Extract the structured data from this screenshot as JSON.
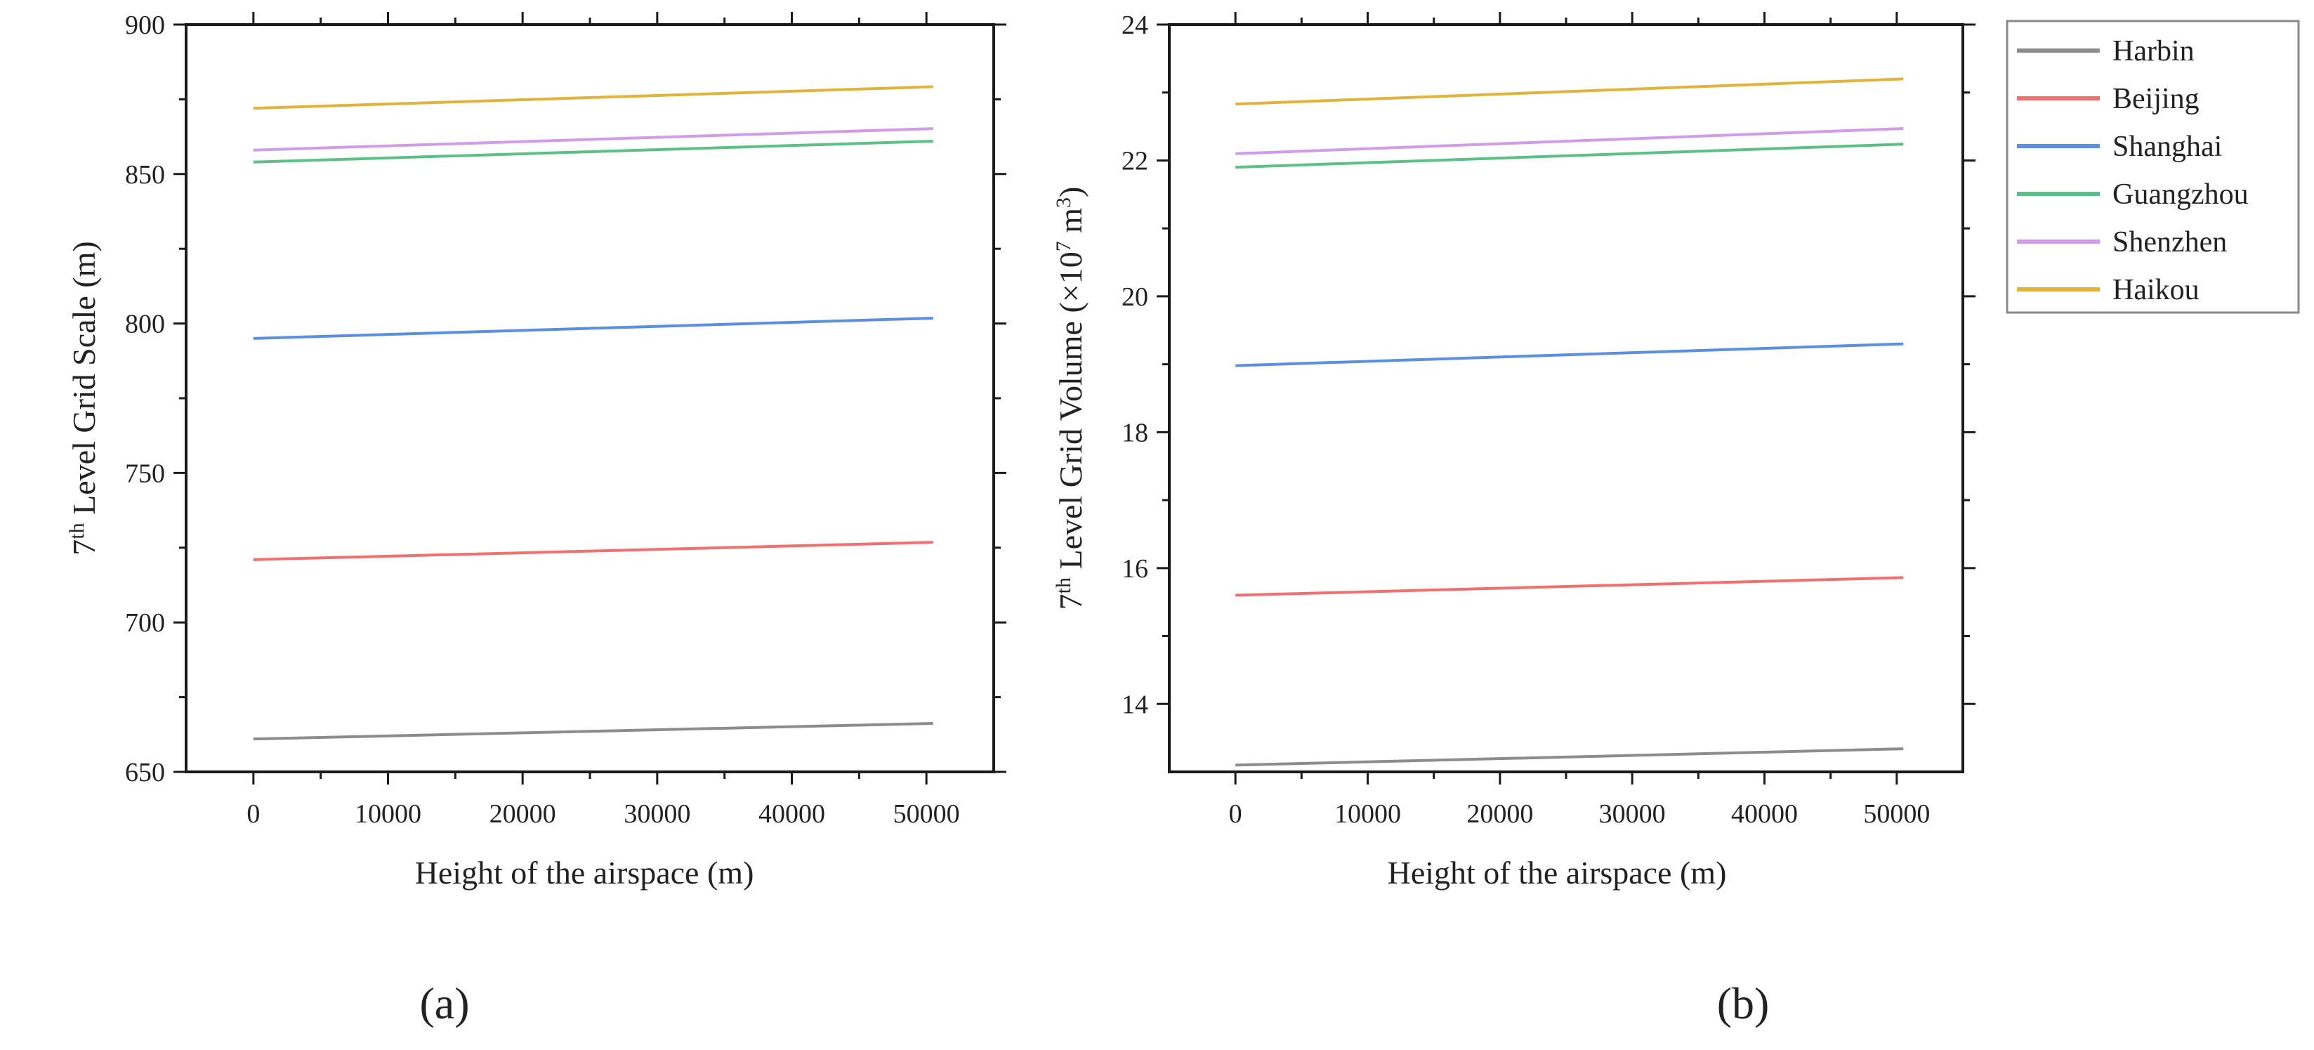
{
  "colors": {
    "Harbin": "#8c8c8c",
    "Beijing": "#f07070",
    "Shanghai": "#5b8fe0",
    "Guangzhou": "#5cbf85",
    "Shenzhen": "#d29be8",
    "Haikou": "#e0b33a"
  },
  "legend": {
    "entries": [
      "Harbin",
      "Beijing",
      "Shanghai",
      "Guangzhou",
      "Shenzhen",
      "Haikou"
    ]
  },
  "panel_labels": {
    "a": "(a)",
    "b": "(b)"
  },
  "chart_data": [
    {
      "type": "line",
      "title": "",
      "xlabel": "Height of the airspace (m)",
      "ylabel_parts": {
        "prefix": "7",
        "sup": "th",
        "suffix": " Level Grid Scale (m)"
      },
      "xlim": [
        -5000,
        55000
      ],
      "ylim": [
        650,
        900
      ],
      "xticks": [
        "0",
        "10000",
        "20000",
        "30000",
        "40000",
        "50000"
      ],
      "xtick_values": [
        0,
        10000,
        20000,
        30000,
        40000,
        50000
      ],
      "yticks": [
        "650",
        "700",
        "750",
        "800",
        "850",
        "900"
      ],
      "ytick_values": [
        650,
        700,
        750,
        800,
        850,
        900
      ],
      "x": [
        0,
        50500
      ],
      "series": [
        {
          "name": "Harbin",
          "values": [
            661,
            666.2
          ]
        },
        {
          "name": "Beijing",
          "values": [
            721,
            726.8
          ]
        },
        {
          "name": "Shanghai",
          "values": [
            795,
            801.8
          ]
        },
        {
          "name": "Guangzhou",
          "values": [
            854,
            861
          ]
        },
        {
          "name": "Shenzhen",
          "values": [
            858,
            865.2
          ]
        },
        {
          "name": "Haikou",
          "values": [
            872,
            879.2
          ]
        }
      ]
    },
    {
      "type": "line",
      "title": "",
      "xlabel": "Height of the airspace (m)",
      "ylabel_parts": {
        "prefix": "7",
        "sup": "th",
        "suffix": " Level Grid Volume (×10",
        "sup2": "7",
        "suffix2": " m",
        "sup3": "3",
        "suffix3": ")"
      },
      "xlim": [
        -5000,
        55000
      ],
      "ylim": [
        13,
        24
      ],
      "xticks": [
        "0",
        "10000",
        "20000",
        "30000",
        "40000",
        "50000"
      ],
      "xtick_values": [
        0,
        10000,
        20000,
        30000,
        40000,
        50000
      ],
      "yticks": [
        "14",
        "16",
        "18",
        "20",
        "22",
        "24"
      ],
      "ytick_values": [
        14,
        16,
        18,
        20,
        22,
        24
      ],
      "x": [
        0,
        50500
      ],
      "series": [
        {
          "name": "Harbin",
          "values": [
            13.1,
            13.34
          ]
        },
        {
          "name": "Beijing",
          "values": [
            15.6,
            15.86
          ]
        },
        {
          "name": "Shanghai",
          "values": [
            18.98,
            19.3
          ]
        },
        {
          "name": "Guangzhou",
          "values": [
            21.9,
            22.24
          ]
        },
        {
          "name": "Shenzhen",
          "values": [
            22.1,
            22.47
          ]
        },
        {
          "name": "Haikou",
          "values": [
            22.83,
            23.2
          ]
        }
      ]
    }
  ]
}
